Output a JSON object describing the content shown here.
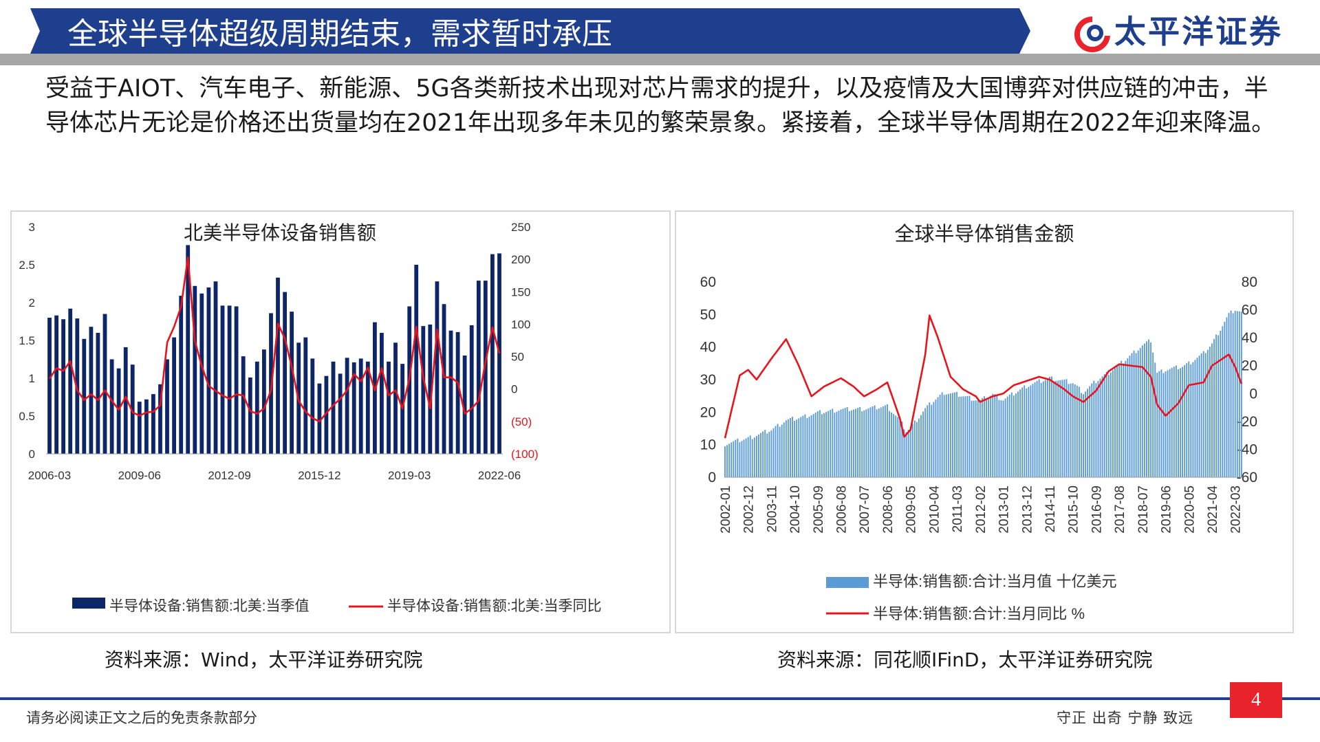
{
  "header": {
    "title": "全球半导体超级周期结束，需求暂时承压",
    "logo_text": "太平洋证券",
    "banner_color": "#1e3e8e"
  },
  "intro": "受益于AIOT、汽车电子、新能源、5G各类新技术出现对芯片需求的提升，以及疫情及大国博弈对供应链的冲击，半导体芯片无论是价格还出货量均在2021年出现多年未见的繁荣景象。紧接着，全球半导体周期在2022年迎来降温。",
  "sources": {
    "left": "资料来源：Wind，太平洋证券研究院",
    "right": "资料来源：同花顺IFinD，太平洋证券研究院"
  },
  "footer": {
    "disclaimer": "请务必阅读正文之后的免责条款部分",
    "motto": "守正 出奇 宁静 致远",
    "page_number": "4"
  },
  "chart_data": [
    {
      "type": "bar",
      "title": "北美半导体设备销售额",
      "colors": {
        "bar": "#0d2668",
        "line": "#e8141b"
      },
      "categories": [
        "2006-03",
        "2006-06",
        "2006-09",
        "2006-12",
        "2007-03",
        "2007-06",
        "2007-09",
        "2007-12",
        "2008-03",
        "2008-06",
        "2008-09",
        "2008-12",
        "2009-03",
        "2009-06",
        "2009-09",
        "2009-12",
        "2010-03",
        "2010-06",
        "2010-09",
        "2010-12",
        "2011-03",
        "2011-06",
        "2011-09",
        "2011-12",
        "2012-03",
        "2012-06",
        "2012-09",
        "2012-12",
        "2013-03",
        "2013-06",
        "2013-09",
        "2013-12",
        "2014-03",
        "2014-06",
        "2014-09",
        "2014-12",
        "2015-03",
        "2015-06",
        "2015-09",
        "2015-12",
        "2016-03",
        "2016-06",
        "2016-09",
        "2016-12",
        "2017-03",
        "2017-06",
        "2017-09",
        "2017-12",
        "2018-03",
        "2018-06",
        "2018-09",
        "2018-12",
        "2019-03",
        "2019-06",
        "2019-09",
        "2019-12",
        "2020-03",
        "2020-06",
        "2020-09",
        "2020-12",
        "2021-03",
        "2021-06",
        "2021-09",
        "2021-12",
        "2022-03",
        "2022-06"
      ],
      "x_tick_labels": [
        "2006-03",
        "2009-06",
        "2012-09",
        "2015-12",
        "2019-03",
        "2022-06"
      ],
      "series": [
        {
          "name": "半导体设备:销售额:北美:当季值",
          "axis": "left",
          "values": [
            1.8,
            1.83,
            1.78,
            1.92,
            1.79,
            1.52,
            1.68,
            1.6,
            1.85,
            1.25,
            1.13,
            1.41,
            1.18,
            0.69,
            0.72,
            0.79,
            0.92,
            1.25,
            1.54,
            2.09,
            2.76,
            2.22,
            2.12,
            2.2,
            2.28,
            1.96,
            1.96,
            1.95,
            1.29,
            1.01,
            1.22,
            1.38,
            1.86,
            2.33,
            2.14,
            1.88,
            1.47,
            1.54,
            1.26,
            0.93,
            1.03,
            1.22,
            1.06,
            1.27,
            1.21,
            1.26,
            1.22,
            1.74,
            1.6,
            1.22,
            1.47,
            1.19,
            1.95,
            2.5,
            1.69,
            1.71,
            2.28,
            1.98,
            1.63,
            1.61,
            1.3,
            1.7,
            2.29,
            2.29,
            2.64,
            2.65
          ]
        },
        {
          "name": "半导体设备:销售额:北美:当季同比",
          "axis": "right",
          "values": [
            16,
            32,
            28,
            43,
            -2,
            -17,
            -8,
            -17,
            -2,
            -18,
            -32,
            -12,
            -36,
            -41,
            -36,
            -35,
            -25,
            72,
            96,
            127,
            203,
            74,
            35,
            5,
            -3,
            -10,
            -15,
            -8,
            -10,
            -34,
            -38,
            -30,
            -2,
            101,
            78,
            34,
            -18,
            -35,
            -45,
            -50,
            -37,
            -25,
            -15,
            -2,
            23,
            12,
            33,
            -2,
            32,
            -10,
            -2,
            -30,
            16,
            96,
            18,
            -30,
            92,
            18,
            18,
            10,
            -38,
            -30,
            -18,
            42,
            95,
            55
          ]
        }
      ],
      "y_left": {
        "ylim": [
          0,
          3
        ],
        "ticks": [
          "0",
          "0.5",
          "1",
          "1.5",
          "2",
          "2.5",
          "3"
        ]
      },
      "y_right": {
        "ylim": [
          -100,
          250
        ],
        "ticks": [
          "(100)",
          "(50)",
          "0",
          "50",
          "100",
          "150",
          "200",
          "250"
        ]
      },
      "legend": "bottom"
    },
    {
      "type": "bar",
      "title": "全球半导体销售金额",
      "colors": {
        "bar": "#5b9bd5",
        "line": "#e8141b"
      },
      "x_tick_labels": [
        "2002-01",
        "2002-12",
        "2003-11",
        "2004-10",
        "2005-09",
        "2006-08",
        "2007-07",
        "2008-06",
        "2009-05",
        "2010-04",
        "2011-03",
        "2012-02",
        "2013-01",
        "2013-12",
        "2014-11",
        "2015-10",
        "2016-09",
        "2017-08",
        "2018-07",
        "2019-06",
        "2020-05",
        "2021-04",
        "2022-03"
      ],
      "x_start": "2002-01",
      "x_end": "2022-06",
      "series": [
        {
          "name": "半导体:销售额:合计:当月值 十亿美元",
          "axis": "left",
          "anchors": [
            [
              "2002-01",
              10.2
            ],
            [
              "2002-12",
              12
            ],
            [
              "2003-11",
              14.5
            ],
            [
              "2004-06",
              17.5
            ],
            [
              "2004-12",
              18.2
            ],
            [
              "2005-09",
              19.8
            ],
            [
              "2006-08",
              20.8
            ],
            [
              "2007-07",
              21
            ],
            [
              "2008-06",
              21.8
            ],
            [
              "2008-12",
              17.5
            ],
            [
              "2009-03",
              14.2
            ],
            [
              "2009-05",
              15.2
            ],
            [
              "2009-12",
              21
            ],
            [
              "2010-04",
              23.5
            ],
            [
              "2010-09",
              26
            ],
            [
              "2011-03",
              25.5
            ],
            [
              "2012-02",
              23.5
            ],
            [
              "2012-08",
              25.5
            ],
            [
              "2013-01",
              23.8
            ],
            [
              "2013-12",
              28
            ],
            [
              "2014-11",
              30.5
            ],
            [
              "2015-10",
              29
            ],
            [
              "2016-03",
              26
            ],
            [
              "2016-09",
              29.5
            ],
            [
              "2017-08",
              34.5
            ],
            [
              "2018-07",
              40.5
            ],
            [
              "2018-11",
              42
            ],
            [
              "2019-02",
              32
            ],
            [
              "2019-06",
              33
            ],
            [
              "2020-02",
              34
            ],
            [
              "2020-05",
              35
            ],
            [
              "2020-12",
              38
            ],
            [
              "2021-04",
              41
            ],
            [
              "2021-12",
              50
            ],
            [
              "2022-03",
              51.5
            ],
            [
              "2022-06",
              50.5
            ]
          ]
        },
        {
          "name": "半导体:销售额:合计:当月同比 %",
          "axis": "right",
          "anchors": [
            [
              "2002-01",
              -32
            ],
            [
              "2002-08",
              13
            ],
            [
              "2002-12",
              17
            ],
            [
              "2003-04",
              10
            ],
            [
              "2003-11",
              25
            ],
            [
              "2004-06",
              39
            ],
            [
              "2004-12",
              20
            ],
            [
              "2005-06",
              -2
            ],
            [
              "2005-12",
              5
            ],
            [
              "2006-08",
              11
            ],
            [
              "2007-02",
              5
            ],
            [
              "2007-07",
              -2
            ],
            [
              "2008-01",
              3
            ],
            [
              "2008-06",
              8
            ],
            [
              "2008-12",
              -18
            ],
            [
              "2009-02",
              -31
            ],
            [
              "2009-05",
              -26
            ],
            [
              "2009-12",
              28
            ],
            [
              "2010-02",
              56
            ],
            [
              "2010-06",
              40
            ],
            [
              "2010-12",
              12
            ],
            [
              "2011-06",
              3
            ],
            [
              "2011-12",
              -2
            ],
            [
              "2012-02",
              -6
            ],
            [
              "2012-08",
              -2
            ],
            [
              "2013-01",
              0
            ],
            [
              "2013-06",
              6
            ],
            [
              "2013-12",
              9
            ],
            [
              "2014-06",
              12
            ],
            [
              "2014-11",
              10
            ],
            [
              "2015-06",
              3
            ],
            [
              "2015-10",
              -2
            ],
            [
              "2016-03",
              -6
            ],
            [
              "2016-09",
              2
            ],
            [
              "2017-03",
              16
            ],
            [
              "2017-08",
              21
            ],
            [
              "2018-07",
              19
            ],
            [
              "2018-11",
              12
            ],
            [
              "2019-02",
              -8
            ],
            [
              "2019-06",
              -16
            ],
            [
              "2019-12",
              -7
            ],
            [
              "2020-05",
              6
            ],
            [
              "2020-12",
              8
            ],
            [
              "2021-04",
              20
            ],
            [
              "2021-12",
              28
            ],
            [
              "2022-03",
              19
            ],
            [
              "2022-06",
              7
            ]
          ]
        }
      ],
      "y_left": {
        "ylim": [
          0,
          60
        ],
        "ticks": [
          "0",
          "10",
          "20",
          "30",
          "40",
          "50",
          "60"
        ]
      },
      "y_right": {
        "ylim": [
          -60,
          80
        ],
        "ticks": [
          "-60",
          "-40",
          "-20",
          "0",
          "20",
          "40",
          "60",
          "80"
        ]
      },
      "legend": "bottom"
    }
  ]
}
